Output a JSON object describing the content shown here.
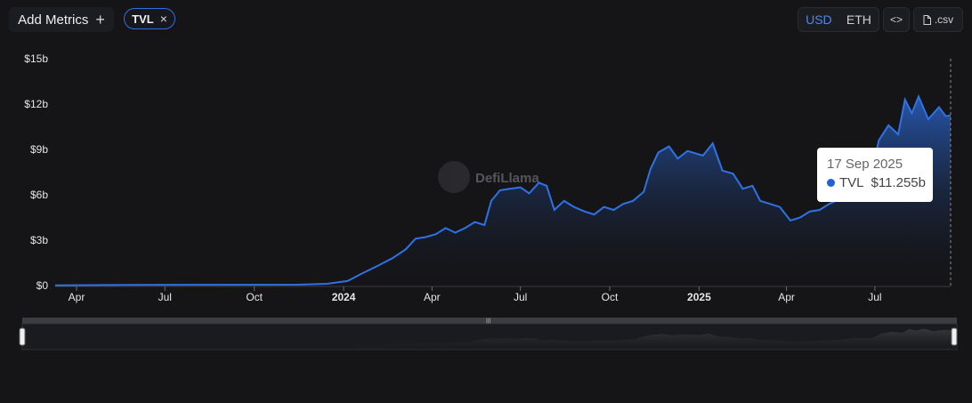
{
  "toolbar": {
    "add_metrics_label": "Add Metrics",
    "add_icon": "+",
    "metric_chip_label": "TVL",
    "chip_close_icon": "×",
    "currency_active": "USD",
    "currency_inactive": "ETH",
    "embed_icon": "<>",
    "csv_label": ".csv",
    "accent_color": "#2f6fe0"
  },
  "watermark": "DefiLlama",
  "tooltip": {
    "date": "17 Sep 2025",
    "series": "TVL",
    "value": "$11.255b"
  },
  "chart_data": {
    "type": "area",
    "ylim": [
      0,
      15
    ],
    "yticks": [
      {
        "value": 0,
        "label": "$0"
      },
      {
        "value": 3,
        "label": "$3b"
      },
      {
        "value": 6,
        "label": "$6b"
      },
      {
        "value": 9,
        "label": "$9b"
      },
      {
        "value": 12,
        "label": "$12b"
      },
      {
        "value": 15,
        "label": "$15b"
      }
    ],
    "xlim": [
      "2023-03-10",
      "2025-09-17"
    ],
    "xticks": [
      {
        "date": "2023-04-01",
        "label": "Apr",
        "bold": false
      },
      {
        "date": "2023-07-01",
        "label": "Jul",
        "bold": false
      },
      {
        "date": "2023-10-01",
        "label": "Oct",
        "bold": false
      },
      {
        "date": "2024-01-01",
        "label": "2024",
        "bold": true
      },
      {
        "date": "2024-04-01",
        "label": "Apr",
        "bold": false
      },
      {
        "date": "2024-07-01",
        "label": "Jul",
        "bold": false
      },
      {
        "date": "2024-10-01",
        "label": "Oct",
        "bold": false
      },
      {
        "date": "2025-01-01",
        "label": "2025",
        "bold": true
      },
      {
        "date": "2025-04-01",
        "label": "Apr",
        "bold": false
      },
      {
        "date": "2025-07-01",
        "label": "Jul",
        "bold": false
      }
    ],
    "series": [
      {
        "line_color": "#2f72e6",
        "points": [
          [
            "2023-03-10",
            0.02
          ],
          [
            "2023-06-01",
            0.04
          ],
          [
            "2023-09-01",
            0.05
          ],
          [
            "2023-11-15",
            0.06
          ],
          [
            "2023-12-15",
            0.12
          ],
          [
            "2024-01-05",
            0.3
          ],
          [
            "2024-01-20",
            0.8
          ],
          [
            "2024-02-05",
            1.3
          ],
          [
            "2024-02-20",
            1.8
          ],
          [
            "2024-03-05",
            2.4
          ],
          [
            "2024-03-15",
            3.1
          ],
          [
            "2024-03-25",
            3.2
          ],
          [
            "2024-04-05",
            3.4
          ],
          [
            "2024-04-15",
            3.8
          ],
          [
            "2024-04-25",
            3.5
          ],
          [
            "2024-05-05",
            3.8
          ],
          [
            "2024-05-15",
            4.2
          ],
          [
            "2024-05-25",
            4.0
          ],
          [
            "2024-06-01",
            5.6
          ],
          [
            "2024-06-10",
            6.3
          ],
          [
            "2024-06-20",
            6.4
          ],
          [
            "2024-07-01",
            6.5
          ],
          [
            "2024-07-10",
            6.1
          ],
          [
            "2024-07-20",
            6.8
          ],
          [
            "2024-07-28",
            6.6
          ],
          [
            "2024-08-05",
            5.0
          ],
          [
            "2024-08-15",
            5.6
          ],
          [
            "2024-08-25",
            5.2
          ],
          [
            "2024-09-05",
            4.9
          ],
          [
            "2024-09-15",
            4.7
          ],
          [
            "2024-09-25",
            5.2
          ],
          [
            "2024-10-05",
            5.0
          ],
          [
            "2024-10-15",
            5.4
          ],
          [
            "2024-10-25",
            5.6
          ],
          [
            "2024-11-05",
            6.2
          ],
          [
            "2024-11-12",
            7.7
          ],
          [
            "2024-11-20",
            8.8
          ],
          [
            "2024-12-01",
            9.2
          ],
          [
            "2024-12-10",
            8.4
          ],
          [
            "2024-12-20",
            8.9
          ],
          [
            "2025-01-05",
            8.6
          ],
          [
            "2025-01-15",
            9.4
          ],
          [
            "2025-01-25",
            7.6
          ],
          [
            "2025-02-05",
            7.4
          ],
          [
            "2025-02-15",
            6.4
          ],
          [
            "2025-02-25",
            6.6
          ],
          [
            "2025-03-05",
            5.6
          ],
          [
            "2025-03-15",
            5.4
          ],
          [
            "2025-03-25",
            5.2
          ],
          [
            "2025-04-05",
            4.3
          ],
          [
            "2025-04-15",
            4.5
          ],
          [
            "2025-04-25",
            4.9
          ],
          [
            "2025-05-05",
            5.0
          ],
          [
            "2025-05-15",
            5.4
          ],
          [
            "2025-05-25",
            5.7
          ],
          [
            "2025-06-05",
            6.5
          ],
          [
            "2025-06-15",
            6.8
          ],
          [
            "2025-06-25",
            6.6
          ],
          [
            "2025-07-05",
            9.6
          ],
          [
            "2025-07-15",
            10.6
          ],
          [
            "2025-07-25",
            10.0
          ],
          [
            "2025-08-01",
            12.3
          ],
          [
            "2025-08-08",
            11.4
          ],
          [
            "2025-08-15",
            12.5
          ],
          [
            "2025-08-25",
            11.0
          ],
          [
            "2025-09-05",
            11.8
          ],
          [
            "2025-09-12",
            11.2
          ],
          [
            "2025-09-17",
            11.255
          ]
        ]
      }
    ],
    "grid": false,
    "legend": "none"
  }
}
